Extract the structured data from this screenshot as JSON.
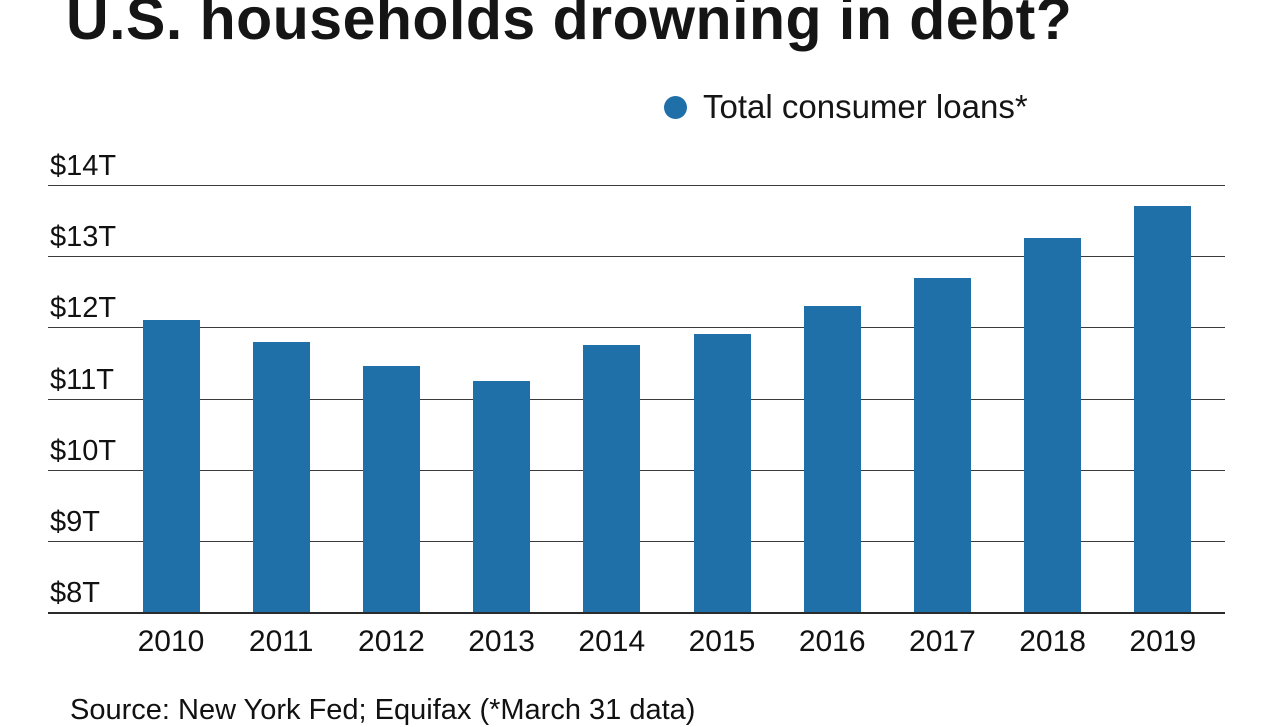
{
  "title": "U.S. households drowning in debt?",
  "legend": {
    "label": "Total consumer loans*",
    "color": "#1f6fa8"
  },
  "source": "Source: New York Fed; Equifax (*March 31 data)",
  "chart_data": {
    "type": "bar",
    "title": "U.S. households drowning in debt?",
    "legend": [
      "Total consumer loans*"
    ],
    "categories": [
      "2010",
      "2011",
      "2012",
      "2013",
      "2014",
      "2015",
      "2016",
      "2017",
      "2018",
      "2019"
    ],
    "values": [
      12.1,
      11.8,
      11.45,
      11.25,
      11.75,
      11.9,
      12.3,
      12.7,
      13.25,
      13.7
    ],
    "unit": "trillion USD",
    "xlabel": "",
    "ylabel": "",
    "ylim": [
      8,
      14
    ],
    "yticks": [
      "$14T",
      "$13T",
      "$12T",
      "$11T",
      "$10T",
      "$9T",
      "$8T"
    ],
    "bar_color": "#1f6fa8",
    "grid": true,
    "legend_position": "top-right"
  }
}
